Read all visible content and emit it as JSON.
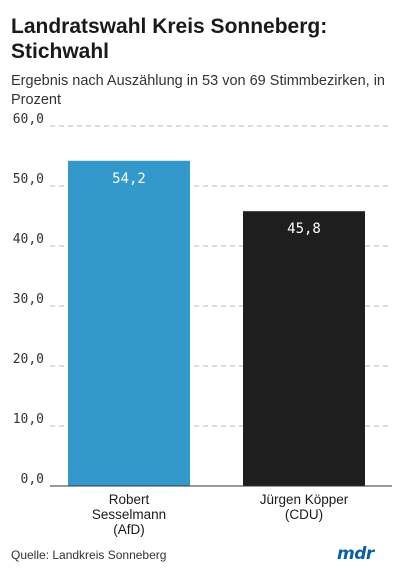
{
  "title": "Landratswahl Kreis Sonneberg: Stichwahl",
  "subtitle": "Ergebnis nach Auszählung in 53 von 69 Stimmbezirken, in Prozent",
  "source": "Quelle: Landkreis Sonneberg",
  "logo_text": "mdr",
  "chart_data": {
    "type": "bar",
    "categories": [
      [
        "Robert",
        "Sesselmann",
        "(AfD)"
      ],
      [
        "Jürgen Köpper",
        "(CDU)"
      ]
    ],
    "values": [
      54.2,
      45.8
    ],
    "value_labels": [
      "54,2",
      "45,8"
    ],
    "yticks": [
      "0,0",
      "10,0",
      "20,0",
      "30,0",
      "40,0",
      "50,0",
      "60,0"
    ],
    "ylim": [
      0,
      60
    ],
    "grid": true,
    "colors": [
      "#3399cc",
      "#1e1e1e"
    ],
    "xlabel": "",
    "ylabel": ""
  }
}
